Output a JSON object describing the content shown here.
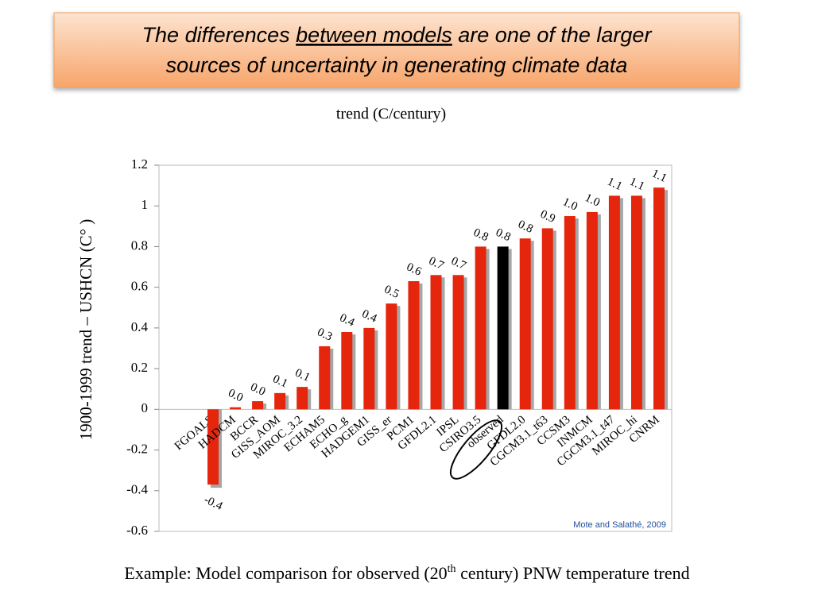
{
  "heading": [
    "The differences ",
    "between models",
    " are one of the larger",
    "sources of uncertainty in generating climate data"
  ],
  "caption": [
    "Example: Model comparison for observed (20",
    "th",
    " century) PNW temperature trend"
  ],
  "chart_data": {
    "type": "bar",
    "title": "trend (C/century)",
    "y_label": "1900-1999 trend – USHCN (C°  )",
    "source": "Mote and Salathé, 2009",
    "categories": [
      "FGOALS",
      "HADCM",
      "BCCR",
      "GISS_AOM",
      "MIROC_3.2",
      "ECHAM5",
      "ECHO_g",
      "HADGEM1",
      "GISS_er",
      "PCM1",
      "GFDL2.1",
      "IPSL",
      "CSIRO3.5",
      "observed",
      "GFDL2.0",
      "CGCM3.1_t63",
      "CCSM3",
      "INMCM",
      "CGCM3.1_t47",
      "MIROC_hi",
      "CNRM"
    ],
    "values": [
      -0.37,
      0.01,
      0.04,
      0.08,
      0.11,
      0.31,
      0.38,
      0.4,
      0.52,
      0.63,
      0.66,
      0.66,
      0.8,
      0.8,
      0.84,
      0.89,
      0.95,
      0.97,
      1.05,
      1.05,
      1.09
    ],
    "value_labels": [
      "-0.4",
      "0.0",
      "0.0",
      "0.1",
      "0.1",
      "0.3",
      "0.4",
      "0.4",
      "0.5",
      "0.6",
      "0.7",
      "0.7",
      "0.8",
      "0.8",
      "0.8",
      "0.9",
      "1.0",
      "1.0",
      "1.1",
      "1.1",
      "1.1"
    ],
    "colors": [
      "#e5260c",
      "#e5260c",
      "#e5260c",
      "#e5260c",
      "#e5260c",
      "#e5260c",
      "#e5260c",
      "#e5260c",
      "#e5260c",
      "#e5260c",
      "#e5260c",
      "#e5260c",
      "#e5260c",
      "#000000",
      "#e5260c",
      "#e5260c",
      "#e5260c",
      "#e5260c",
      "#e5260c",
      "#e5260c",
      "#e5260c"
    ],
    "ylim": [
      -0.6,
      1.2
    ],
    "yticks": [
      -0.6,
      -0.4,
      -0.2,
      0,
      0.2,
      0.4,
      0.6,
      0.8,
      1,
      1.2
    ],
    "grid": false
  }
}
